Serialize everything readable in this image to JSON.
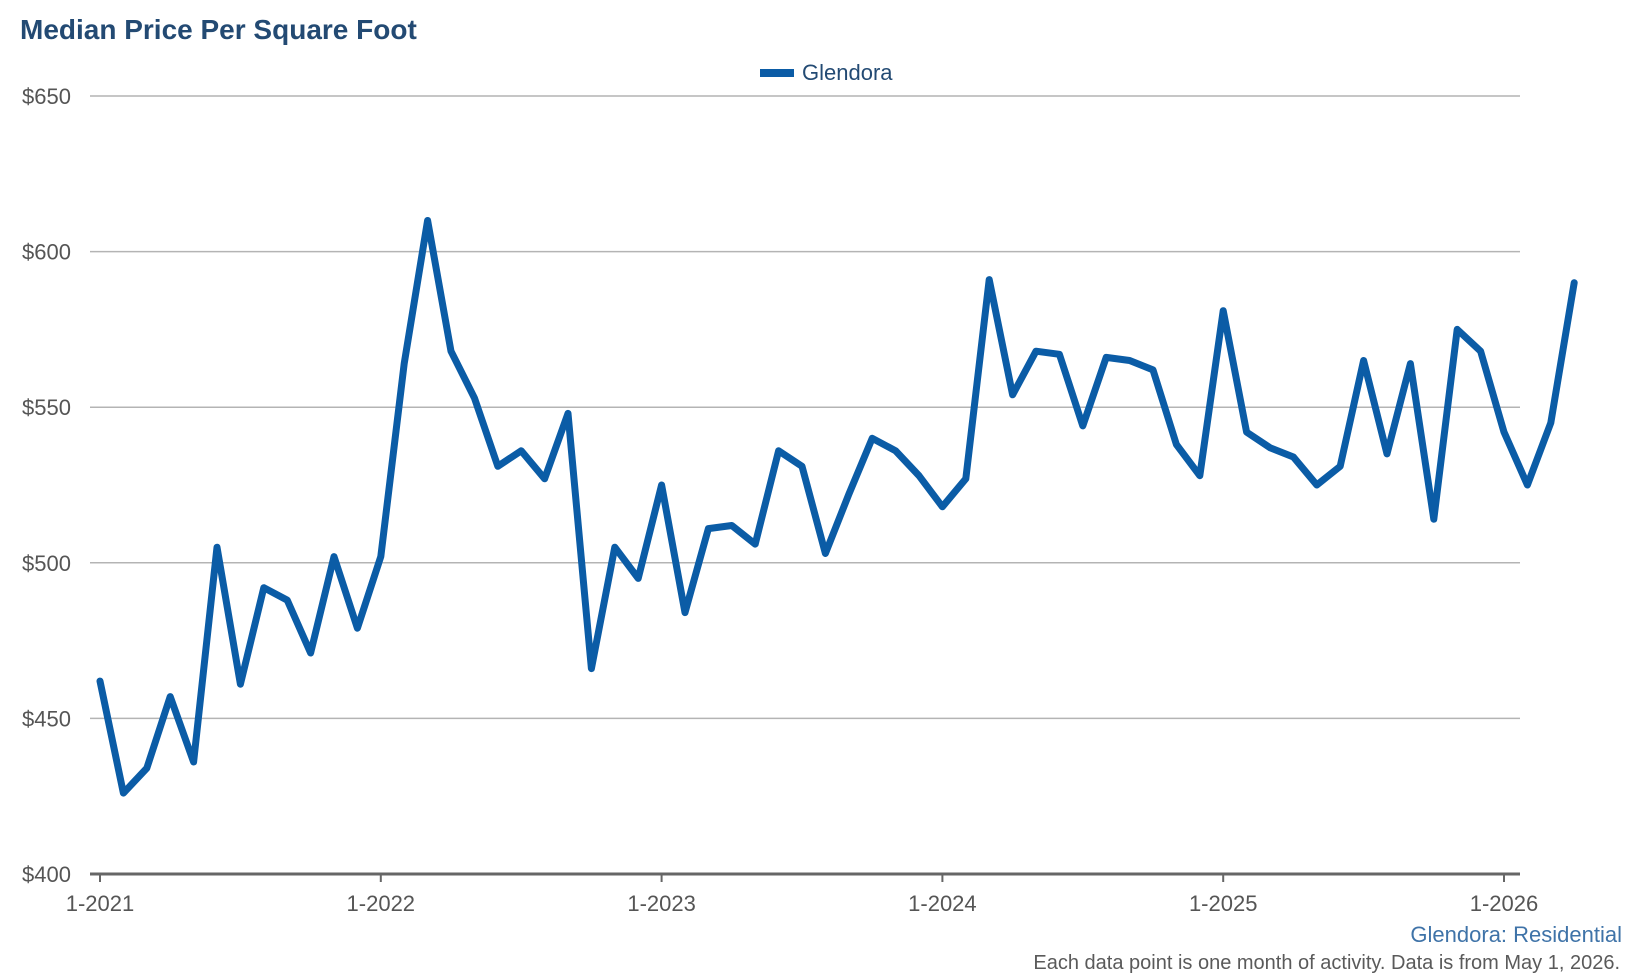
{
  "chart_data": {
    "type": "line",
    "title": "Median Price Per Square Foot",
    "xlabel": "",
    "ylabel": "",
    "ylim": [
      400,
      650
    ],
    "y_ticks": [
      400,
      450,
      500,
      550,
      600,
      650
    ],
    "y_tick_labels": [
      "$400",
      "$450",
      "$500",
      "$550",
      "$600",
      "$650"
    ],
    "x_tick_labels": [
      "1-2021",
      "1-2022",
      "1-2023",
      "1-2024",
      "1-2025",
      "1-2026"
    ],
    "x_start": "2021-01",
    "x_end": "2026-04",
    "grid": true,
    "legend_position": "top-center",
    "color": "#0b5ca6",
    "series": [
      {
        "name": "Glendora",
        "values": [
          462,
          426,
          434,
          457,
          436,
          505,
          461,
          492,
          488,
          471,
          502,
          479,
          502,
          564,
          610,
          568,
          553,
          531,
          536,
          527,
          548,
          466,
          505,
          495,
          525,
          484,
          511,
          512,
          506,
          536,
          531,
          503,
          522,
          540,
          536,
          528,
          518,
          527,
          591,
          554,
          568,
          567,
          544,
          566,
          565,
          562,
          538,
          528,
          581,
          542,
          537,
          534,
          525,
          531,
          565,
          535,
          564,
          514,
          575,
          568,
          542,
          525,
          545,
          590
        ]
      }
    ]
  },
  "footer": {
    "source": "Glendora: Residential",
    "note": "Each data point is one month of activity. Data is from May 1, 2026."
  }
}
